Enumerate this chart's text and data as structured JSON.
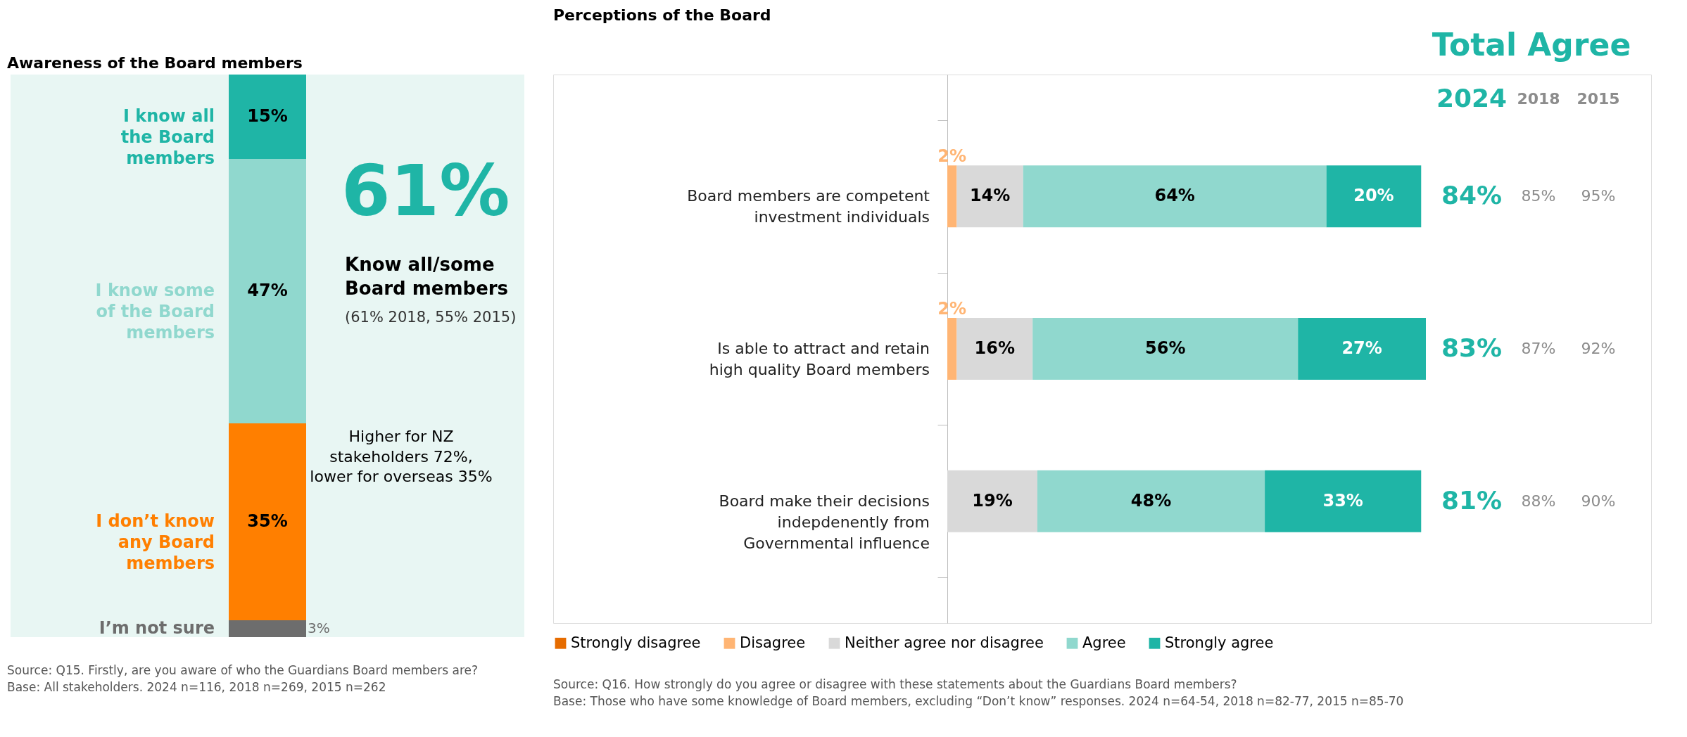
{
  "chart_data": [
    {
      "type": "bar",
      "title": "Awareness of the Board members",
      "stacked": true,
      "categories": [
        null
      ],
      "legend": false,
      "series": [
        {
          "name": "I’m not sure",
          "color": "#6d6d6d",
          "values": [
            3
          ],
          "value_labels": [
            "3%"
          ]
        },
        {
          "name": "I don’t know any Board members",
          "color": "#ff7f00",
          "values": [
            35
          ],
          "value_labels": [
            "35%"
          ]
        },
        {
          "name": "I know some of the Board members",
          "color": "#90d8ce",
          "values": [
            47
          ],
          "value_labels": [
            "47%"
          ]
        },
        {
          "name": "I know all the Board members",
          "color": "#1fb5a6",
          "values": [
            15
          ],
          "value_labels": [
            "15%"
          ]
        }
      ],
      "annotations": [
        "61%",
        "Know all/some Board members",
        "(61% 2018, 55% 2015)",
        "Higher for NZ stakeholders 72%, lower for overseas 35%",
        "Source: Q15. Firstly, are you aware of who the Guardians Board members are?",
        "Base: All stakeholders. 2024 n=116, 2018 n=269, 2015 n=262"
      ]
    },
    {
      "type": "bar",
      "title": "Perceptions of the Board",
      "orientation": "horizontal",
      "stacked": true,
      "legend": "bottom",
      "categories": [
        "Board members are competent investment individuals",
        "Is able to attract and retain high quality Board members",
        "Board make their decisions indepdenently from Governmental influence"
      ],
      "series": [
        {
          "name": "Strongly disagree",
          "color": "#e66c00",
          "values": [
            null,
            null,
            null
          ],
          "value_labels": [
            null,
            null,
            null
          ]
        },
        {
          "name": "Disagree",
          "color": "#ffb574",
          "values": [
            2,
            2,
            null
          ],
          "value_labels": [
            "2%",
            "2%",
            null
          ]
        },
        {
          "name": "Neither agree nor disagree",
          "color": "#d9d9d9",
          "values": [
            14,
            16,
            19
          ],
          "value_labels": [
            "14%",
            "16%",
            "19%"
          ]
        },
        {
          "name": "Agree",
          "color": "#90d8ce",
          "values": [
            64,
            56,
            48
          ],
          "value_labels": [
            "64%",
            "56%",
            "48%"
          ]
        },
        {
          "name": "Strongly agree",
          "color": "#1fb5a6",
          "values": [
            20,
            27,
            33
          ],
          "value_labels": [
            "20%",
            "27%",
            "33%"
          ]
        }
      ],
      "annotations": [
        "Total Agree",
        "2024",
        "2018",
        "2015",
        "84%",
        "85%",
        "95%",
        "83%",
        "87%",
        "92%",
        "81%",
        "88%",
        "90%",
        "Source: Q16. How strongly do you agree or disagree with these statements about the Guardians Board members?",
        "Base: Those who have some knowledge of Board members, excluding “Don’t know” responses. 2024 n=64-54, 2018 n=82-77, 2015 n=85-70"
      ]
    }
  ]
}
